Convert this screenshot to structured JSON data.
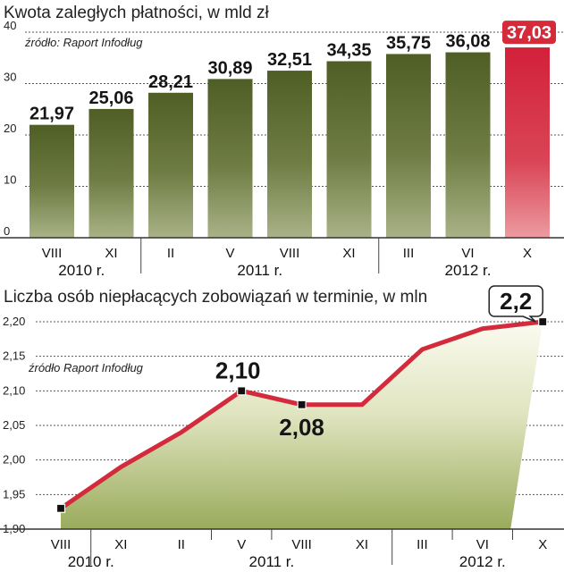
{
  "chart_data": [
    {
      "type": "bar",
      "title": "Kwota zaległych płatności, w mld zł",
      "source": "źródło: Raport Infodług",
      "categories": [
        "VIII",
        "XI",
        "II",
        "V",
        "VIII",
        "XI",
        "III",
        "VI",
        "X"
      ],
      "values": [
        21.97,
        25.06,
        28.21,
        30.89,
        32.51,
        34.35,
        35.75,
        36.08,
        37.03
      ],
      "value_labels": [
        "21,97",
        "25,06",
        "28,21",
        "30,89",
        "32,51",
        "34,35",
        "35,75",
        "36,08",
        "37,03"
      ],
      "highlight_index": 8,
      "yticks": [
        "0",
        "10",
        "20",
        "30",
        "40"
      ],
      "ylim": [
        0,
        40
      ],
      "years": [
        "2010 r.",
        "2011 r.",
        "2012 r."
      ],
      "colors": {
        "bar": "#5a6b2c",
        "highlight": "#d22a3a",
        "label_bg": "#d42a3a"
      }
    },
    {
      "type": "line",
      "title": "Liczba osób niepłacących zobowiązań w terminie, w mln",
      "source": "źródło Raport Infodług",
      "categories": [
        "VIII",
        "XI",
        "II",
        "V",
        "VIII",
        "XI",
        "III",
        "VI",
        "X"
      ],
      "values": [
        1.93,
        1.99,
        2.04,
        2.1,
        2.08,
        2.08,
        2.16,
        2.19,
        2.2
      ],
      "yticks": [
        "1,90",
        "1,95",
        "2,00",
        "2,05",
        "2,10",
        "2,15",
        "2,20"
      ],
      "ylim": [
        1.9,
        2.2
      ],
      "callouts": [
        {
          "index": 3,
          "label": "2,10"
        },
        {
          "index": 4,
          "label": "2,08"
        },
        {
          "index": 8,
          "label": "2,2"
        }
      ],
      "years": [
        "2010 r.",
        "2011 r.",
        "2012 r."
      ],
      "colors": {
        "line": "#d32a3c",
        "fill_top": "#f6f6e6",
        "fill_bottom": "#98a95a"
      }
    }
  ]
}
